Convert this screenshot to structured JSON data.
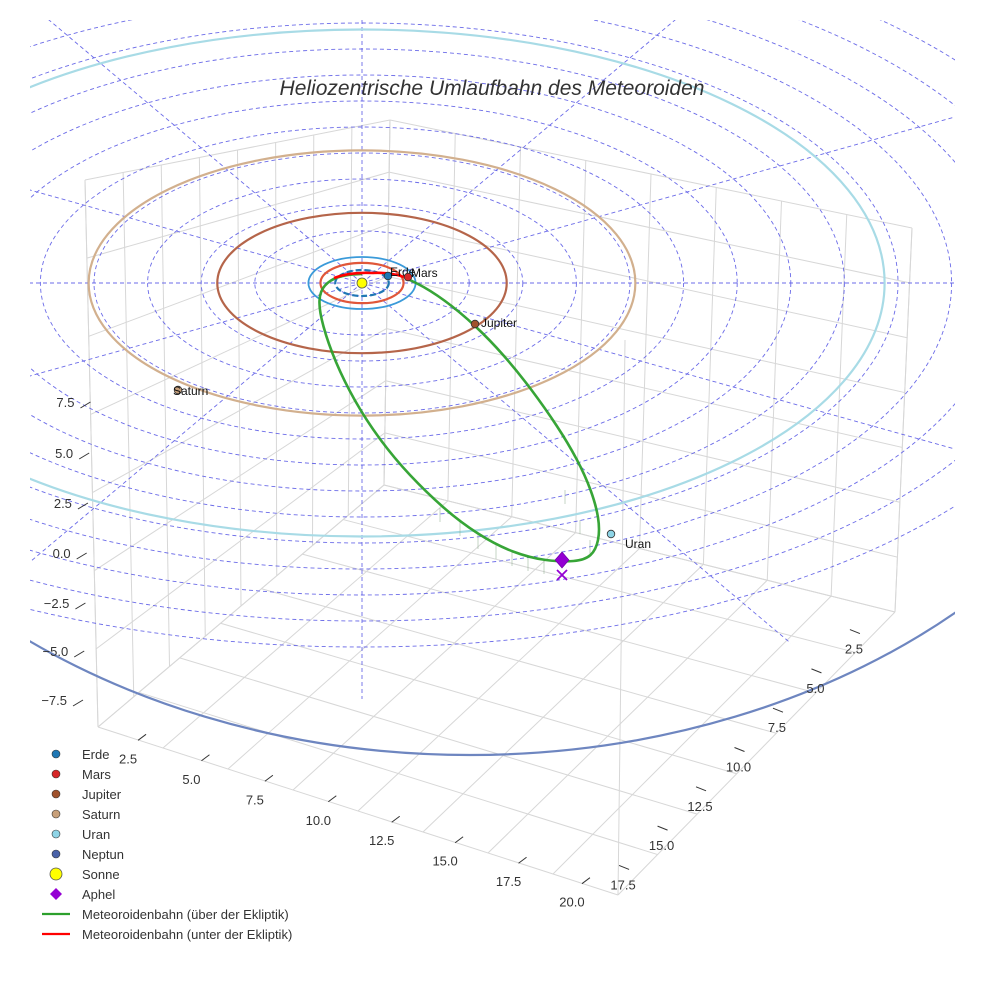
{
  "chart_data": {
    "type": "scatter3d",
    "title": "Heliozentrische Umlaufbahn des Meteoroiden",
    "xlabel": "",
    "ylabel": "",
    "zlabel": "",
    "x_ticks": [
      "2.5",
      "5.0",
      "7.5",
      "10.0",
      "12.5",
      "15.0",
      "17.5",
      "20.0"
    ],
    "y_ticks": [
      "2.5",
      "5.0",
      "7.5",
      "10.0",
      "12.5",
      "15.0",
      "17.5"
    ],
    "z_ticks": [
      "7.5",
      "5.0",
      "2.5",
      "0.0",
      "−2.5",
      "−5.0",
      "−7.5"
    ],
    "planets": [
      {
        "name": "Erde",
        "radius_au": 1.0,
        "color": "#1f77b4"
      },
      {
        "name": "Mars",
        "radius_au": 1.52,
        "color": "#d62728"
      },
      {
        "name": "Jupiter",
        "radius_au": 5.2,
        "color": "#a0522d"
      },
      {
        "name": "Saturn",
        "radius_au": 9.58,
        "color": "#c8a07a"
      },
      {
        "name": "Uran",
        "radius_au": 19.2,
        "color": "#8ed4e6"
      },
      {
        "name": "Neptun",
        "radius_au": 30.1,
        "color": "#4a62a8"
      }
    ],
    "sun": {
      "name": "Sonne",
      "color": "#ffff00"
    },
    "aphel": {
      "name": "Aphel",
      "color": "#9400d3"
    },
    "orbit_above": {
      "name": "Meteoroidenbahn (über der Ekliptik)",
      "color": "#2ca02c"
    },
    "orbit_below": {
      "name": "Meteoroidenbahn (unter der Ekliptik)",
      "color": "#ff0000"
    },
    "legend_position": "bottom-left",
    "grid": true
  }
}
